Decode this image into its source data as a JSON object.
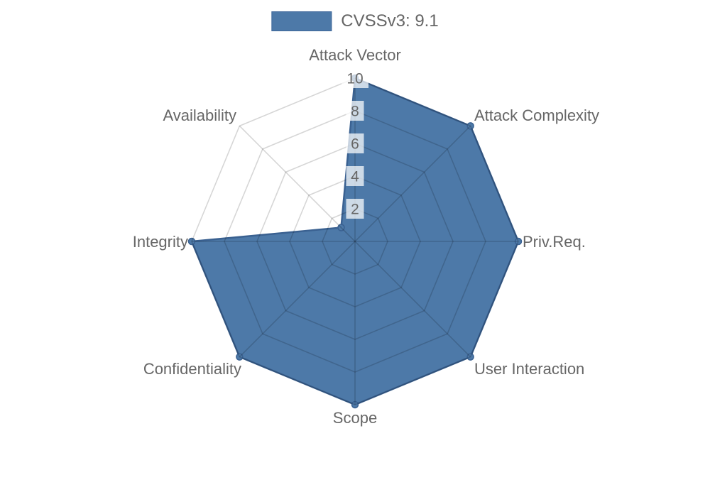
{
  "page": {
    "background": "#ffffff"
  },
  "legend": {
    "label": "CVSSv3: 9.1",
    "swatch_color": "#4d79a8",
    "swatch_border": "#3d6699",
    "text_color": "#666666"
  },
  "chart_data": {
    "type": "radar",
    "title": "",
    "categories": [
      "Attack Vector",
      "Attack Complexity",
      "Priv.Req.",
      "User Interaction",
      "Scope",
      "Confidentiality",
      "Integrity",
      "Availability"
    ],
    "series": [
      {
        "name": "CVSSv3: 9.1",
        "values": [
          10,
          10,
          10,
          10,
          10,
          10,
          10,
          1.2
        ]
      }
    ],
    "scale": {
      "min": 0,
      "max": 10,
      "step": 2,
      "ticks": [
        2,
        4,
        6,
        8,
        10
      ]
    },
    "grid": true,
    "legend_position": "top",
    "style": {
      "fill_color": "#4d79a8",
      "border_color": "#3a6191",
      "point_color": "#4d79a8",
      "point_border_color": "#3a6191",
      "grid_color": "rgba(0,0,0,0.16)",
      "tick_backdrop_color": "rgba(255,255,255,0.72)",
      "label_color": "#666666"
    }
  }
}
